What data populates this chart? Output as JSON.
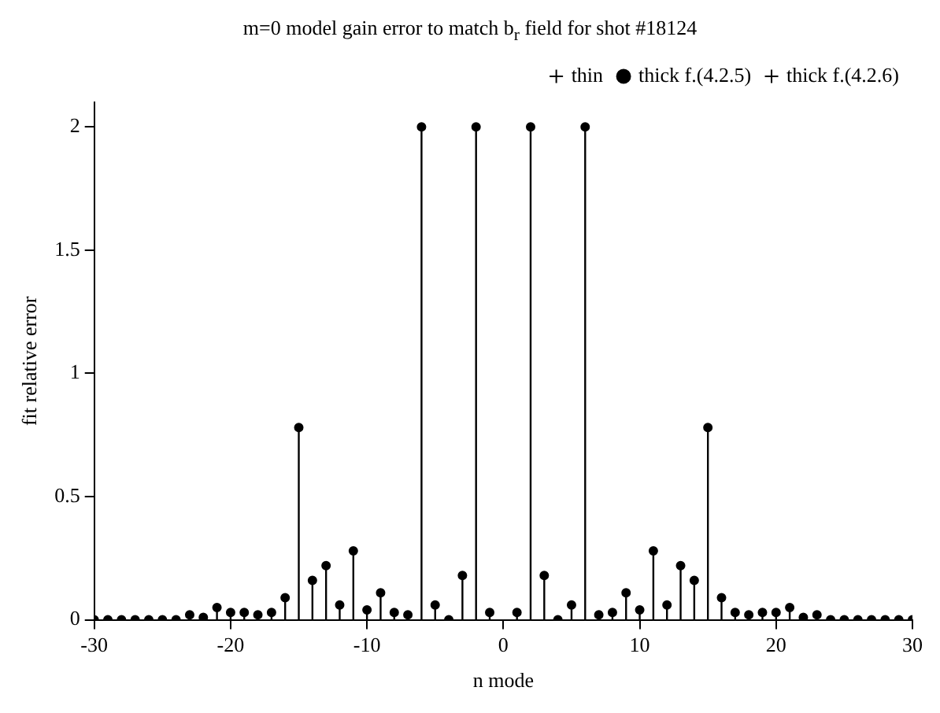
{
  "chart_data": {
    "type": "lollipop",
    "title": "m=0 model gain error to match b$_{r}$ field for shot #18124",
    "xlabel": "n mode",
    "ylabel": "fit relative error",
    "x": [
      -30,
      -29,
      -28,
      -27,
      -26,
      -25,
      -24,
      -23,
      -22,
      -21,
      -20,
      -19,
      -18,
      -17,
      -16,
      -15,
      -14,
      -13,
      -12,
      -11,
      -10,
      -9,
      -8,
      -7,
      -6,
      -5,
      -4,
      -3,
      -2,
      -1,
      0,
      1,
      2,
      3,
      4,
      5,
      6,
      7,
      8,
      9,
      10,
      11,
      12,
      13,
      14,
      15,
      16,
      17,
      18,
      19,
      20,
      21,
      22,
      23,
      24,
      25,
      26,
      27,
      28,
      29,
      30
    ],
    "series": [
      {
        "name": "thin",
        "color": "#000000",
        "marker": "cross",
        "values": [
          null,
          null,
          null,
          null,
          null,
          null,
          null,
          null,
          null,
          null,
          null,
          null,
          null,
          null,
          null,
          null,
          null,
          null,
          null,
          null,
          null,
          null,
          null,
          null,
          null,
          null,
          null,
          null,
          null,
          null,
          null,
          null,
          null,
          null,
          null,
          null,
          null,
          null,
          null,
          null,
          null,
          null,
          null,
          null,
          null,
          null,
          null,
          null,
          null,
          null,
          null,
          null,
          null,
          null,
          null,
          null,
          null,
          null,
          null,
          null,
          null
        ]
      },
      {
        "name": "thick f.(4.2.5)",
        "color": "#000000",
        "marker": "circle",
        "values": [
          0,
          0,
          0,
          0,
          0,
          0,
          0,
          0.02,
          0.01,
          0.05,
          0.03,
          0.03,
          0.02,
          0.03,
          0.09,
          0.78,
          0.16,
          0.22,
          0.06,
          0.28,
          0.04,
          0.11,
          0.03,
          0.02,
          2,
          0.06,
          0,
          0.18,
          2,
          0.03,
          null,
          0.03,
          2,
          0.18,
          0,
          0.06,
          2,
          0.02,
          0.03,
          0.11,
          0.04,
          0.28,
          0.06,
          0.22,
          0.16,
          0.78,
          0.09,
          0.03,
          0.02,
          0.03,
          0.03,
          0.05,
          0.01,
          0.02,
          0,
          0,
          0,
          0,
          0,
          0,
          0
        ]
      },
      {
        "name": "thick f.(4.2.6)",
        "color": "#000000",
        "marker": "cross",
        "values": [
          null,
          null,
          null,
          null,
          null,
          null,
          null,
          null,
          null,
          null,
          null,
          null,
          null,
          null,
          null,
          null,
          null,
          null,
          null,
          null,
          null,
          null,
          null,
          null,
          null,
          null,
          null,
          null,
          null,
          null,
          null,
          null,
          null,
          null,
          null,
          null,
          null,
          null,
          null,
          null,
          null,
          null,
          null,
          null,
          null,
          null,
          null,
          null,
          null,
          null,
          null,
          null,
          null,
          null,
          null,
          null,
          null,
          null,
          null,
          null,
          null
        ]
      }
    ],
    "xlim": [
      -30,
      30
    ],
    "xticks": [
      -30,
      -20,
      -10,
      0,
      10,
      20,
      30
    ],
    "ylim": [
      0,
      2.1
    ],
    "yticks": [
      0,
      0.5,
      1,
      1.5,
      2
    ],
    "grid": false,
    "legend": "top right"
  }
}
